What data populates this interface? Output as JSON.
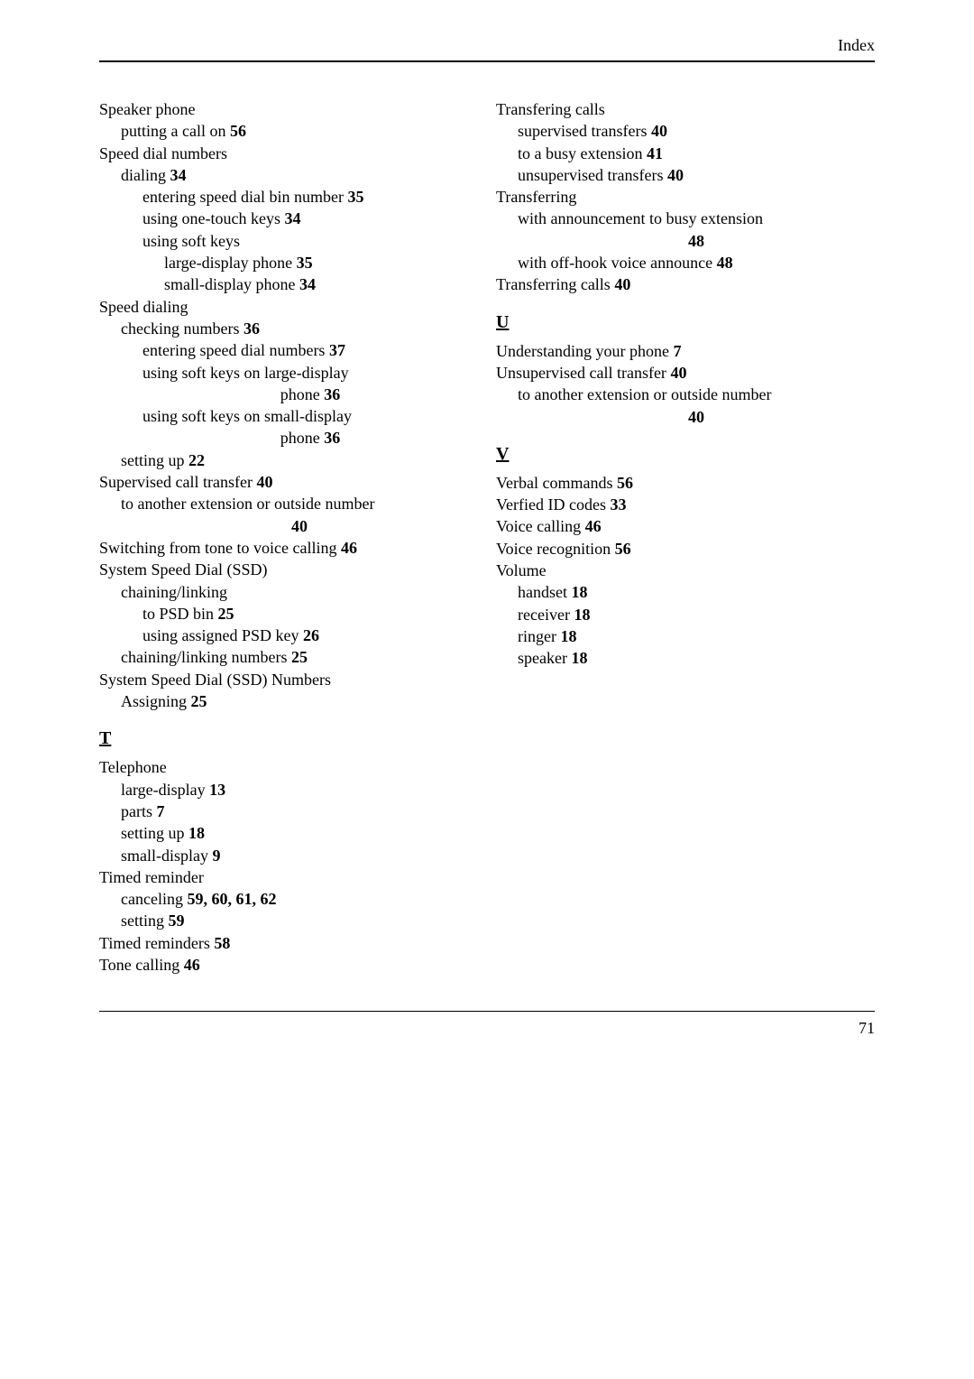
{
  "header": {
    "title": "Index"
  },
  "footer": {
    "page_number": "71"
  },
  "left_column": [
    {
      "indent": 0,
      "text": "Speaker phone"
    },
    {
      "indent": 1,
      "text": "putting a call on",
      "page": "56"
    },
    {
      "indent": 0,
      "text": "Speed dial numbers"
    },
    {
      "indent": 1,
      "text": "dialing",
      "page": "34"
    },
    {
      "indent": 2,
      "text": "entering speed dial bin number",
      "page": "35"
    },
    {
      "indent": 2,
      "text": "using one-touch keys",
      "page": "34"
    },
    {
      "indent": 2,
      "text": "using soft keys"
    },
    {
      "indent": 3,
      "text": "large-display phone",
      "page": "35"
    },
    {
      "indent": 3,
      "text": "small-display phone",
      "page": "34"
    },
    {
      "indent": 0,
      "text": "Speed dialing"
    },
    {
      "indent": 1,
      "text": "checking numbers",
      "page": "36"
    },
    {
      "indent": 2,
      "text": "entering speed dial numbers",
      "page": "37"
    },
    {
      "indent": 2,
      "text": "using soft keys on large-display"
    },
    {
      "indent": 2,
      "center": true,
      "text": "phone",
      "page": "36"
    },
    {
      "indent": 2,
      "text": "using soft keys on small-display"
    },
    {
      "indent": 2,
      "center": true,
      "text": "phone",
      "page": "36"
    },
    {
      "indent": 1,
      "text": "setting up",
      "page": "22"
    },
    {
      "indent": 0,
      "text": "Supervised call transfer",
      "page": "40"
    },
    {
      "indent": 1,
      "text": "to another extension or outside number"
    },
    {
      "indent": 1,
      "center": true,
      "page": "40"
    },
    {
      "indent": 0,
      "text": "Switching from tone to voice calling",
      "page": "46"
    },
    {
      "indent": 0,
      "text": "System Speed Dial (SSD)"
    },
    {
      "indent": 1,
      "text": "chaining/linking"
    },
    {
      "indent": 2,
      "text": "to PSD bin",
      "page": "25"
    },
    {
      "indent": 2,
      "text": "using assigned PSD key",
      "page": "26"
    },
    {
      "indent": 1,
      "text": "chaining/linking numbers",
      "page": "25"
    },
    {
      "indent": 0,
      "text": "System Speed Dial (SSD) Numbers"
    },
    {
      "indent": 1,
      "text": "Assigning",
      "page": "25"
    },
    {
      "letter": "T"
    },
    {
      "indent": 0,
      "text": "Telephone"
    },
    {
      "indent": 1,
      "text": "large-display",
      "page": "13"
    },
    {
      "indent": 1,
      "text": "parts",
      "page": "7"
    },
    {
      "indent": 1,
      "text": "setting up",
      "page": "18"
    },
    {
      "indent": 1,
      "text": "small-display",
      "page": "9"
    },
    {
      "indent": 0,
      "text": "Timed reminder"
    },
    {
      "indent": 1,
      "text": "canceling",
      "page": "59, 60, 61, 62"
    },
    {
      "indent": 1,
      "text": "setting",
      "page": "59"
    },
    {
      "indent": 0,
      "text": "Timed reminders",
      "page": "58"
    },
    {
      "indent": 0,
      "text": "Tone calling",
      "page": "46"
    }
  ],
  "right_column": [
    {
      "indent": 0,
      "text": "Transfering calls"
    },
    {
      "indent": 1,
      "text": "supervised transfers",
      "page": "40"
    },
    {
      "indent": 1,
      "text": "to a busy extension",
      "page": "41"
    },
    {
      "indent": 1,
      "text": "unsupervised transfers",
      "page": "40"
    },
    {
      "indent": 0,
      "text": "Transferring"
    },
    {
      "indent": 1,
      "text": "with announcement to busy extension"
    },
    {
      "indent": 1,
      "center": true,
      "page": "48"
    },
    {
      "indent": 1,
      "text": "with off-hook voice announce",
      "page": "48"
    },
    {
      "indent": 0,
      "text": "Transferring calls",
      "page": "40"
    },
    {
      "letter": "U"
    },
    {
      "indent": 0,
      "text": "Understanding your phone",
      "page": "7"
    },
    {
      "indent": 0,
      "text": "Unsupervised call transfer",
      "page": "40"
    },
    {
      "indent": 1,
      "text": "to another extension or outside number"
    },
    {
      "indent": 1,
      "center": true,
      "page": "40"
    },
    {
      "letter": "V"
    },
    {
      "indent": 0,
      "text": "Verbal commands",
      "page": "56"
    },
    {
      "indent": 0,
      "text": "Verfied ID codes",
      "page": "33"
    },
    {
      "indent": 0,
      "text": "Voice calling",
      "page": "46"
    },
    {
      "indent": 0,
      "text": "Voice recognition",
      "page": "56"
    },
    {
      "indent": 0,
      "text": "Volume"
    },
    {
      "indent": 1,
      "text": "handset",
      "page": "18"
    },
    {
      "indent": 1,
      "text": "receiver",
      "page": "18"
    },
    {
      "indent": 1,
      "text": "ringer",
      "page": "18"
    },
    {
      "indent": 1,
      "text": "speaker",
      "page": "18"
    }
  ]
}
